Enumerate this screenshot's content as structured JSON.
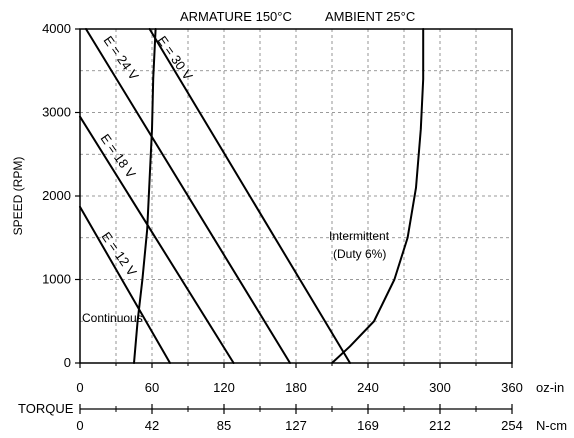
{
  "chart_data": {
    "type": "line",
    "header": {
      "armature": "ARMATURE 150°C",
      "ambient": "AMBIENT 25°C"
    },
    "ylabel": "SPEED (RPM)",
    "torque_label": "TORQUE",
    "x_unit_primary": "oz-in",
    "x_unit_secondary": "N-cm",
    "ylim": [
      0,
      4000
    ],
    "xlim": [
      0,
      360
    ],
    "y_ticks": [
      "0",
      "1000",
      "2000",
      "3000",
      "4000"
    ],
    "y_tick_values": [
      0,
      1000,
      2000,
      3000,
      4000
    ],
    "x_ticks_ozin": [
      "0",
      "60",
      "120",
      "180",
      "240",
      "300",
      "360"
    ],
    "x_tick_values_ozin": [
      0,
      60,
      120,
      180,
      240,
      300,
      360
    ],
    "x_ticks_ncm": [
      "0",
      "42",
      "85",
      "127",
      "169",
      "212",
      "254"
    ],
    "grid": true,
    "series": [
      {
        "name": "E = 12 V",
        "points": [
          [
            0,
            1870
          ],
          [
            75,
            0
          ]
        ]
      },
      {
        "name": "E = 18 V",
        "points": [
          [
            0,
            2950
          ],
          [
            128,
            0
          ]
        ]
      },
      {
        "name": "E = 24 V",
        "points": [
          [
            5,
            4000
          ],
          [
            175,
            0
          ]
        ]
      },
      {
        "name": "E = 30 V",
        "points": [
          [
            58,
            4000
          ],
          [
            225,
            0
          ]
        ]
      },
      {
        "name": "Continuous",
        "points": [
          [
            45,
            0
          ],
          [
            48,
            500
          ],
          [
            52,
            1000
          ],
          [
            56,
            1600
          ],
          [
            58,
            2200
          ],
          [
            60,
            2800
          ],
          [
            61,
            3400
          ],
          [
            63,
            4000
          ]
        ]
      },
      {
        "name": "Intermittent (Duty 6%)",
        "points": [
          [
            210,
            0
          ],
          [
            225,
            200
          ],
          [
            245,
            500
          ],
          [
            262,
            1000
          ],
          [
            273,
            1500
          ],
          [
            280,
            2100
          ],
          [
            284,
            2800
          ],
          [
            286,
            3400
          ],
          [
            286,
            4000
          ]
        ]
      }
    ],
    "annotations": {
      "e12": "E = 12 V",
      "e18": "E = 18 V",
      "e24": "E = 24 V",
      "e30": "E = 30 V",
      "continuous": "Continuous",
      "intermittent_1": "Intermittent",
      "intermittent_2": "(Duty 6%)"
    },
    "colors": {
      "line": "#000000",
      "grid": "#7a7a7a"
    }
  }
}
